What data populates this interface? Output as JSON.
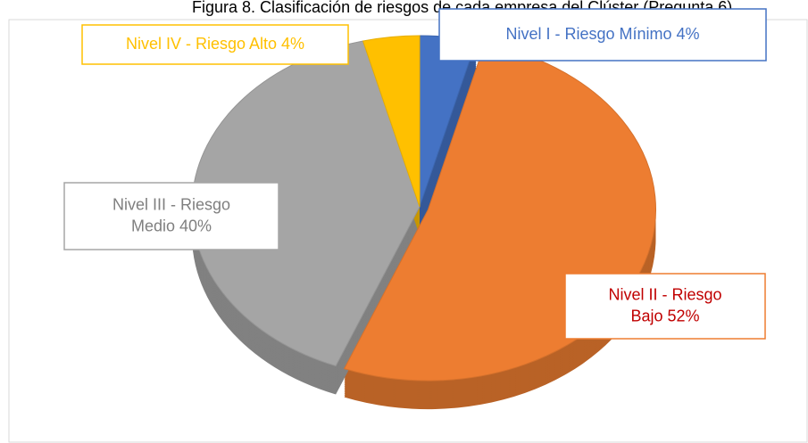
{
  "chart_data": {
    "type": "pie",
    "title": "Figura 8. Clasificación de riesgos de cada empresa del Clúster (Pregunta 6)",
    "categories": [
      "Nivel I - Riesgo Mínimo",
      "Nivel II - Riesgo Bajo",
      "Nivel III - Riesgo Medio",
      "Nivel IV - Riesgo Alto"
    ],
    "values": [
      4,
      52,
      40,
      4
    ],
    "value_labels": [
      [
        "Nivel I - Riesgo Mínimo 4%"
      ],
      [
        "Nivel II - Riesgo",
        "Bajo  52%"
      ],
      [
        "Nivel III - Riesgo",
        "Medio 40%"
      ],
      [
        "Nivel IV - Riesgo Alto 4%"
      ]
    ],
    "colors": [
      "#4472c4",
      "#ed7d31",
      "#a5a5a5",
      "#ffc000"
    ],
    "label_colors": [
      "#4472c4",
      "#c00000",
      "#7f7f7f",
      "#ffc000"
    ]
  }
}
